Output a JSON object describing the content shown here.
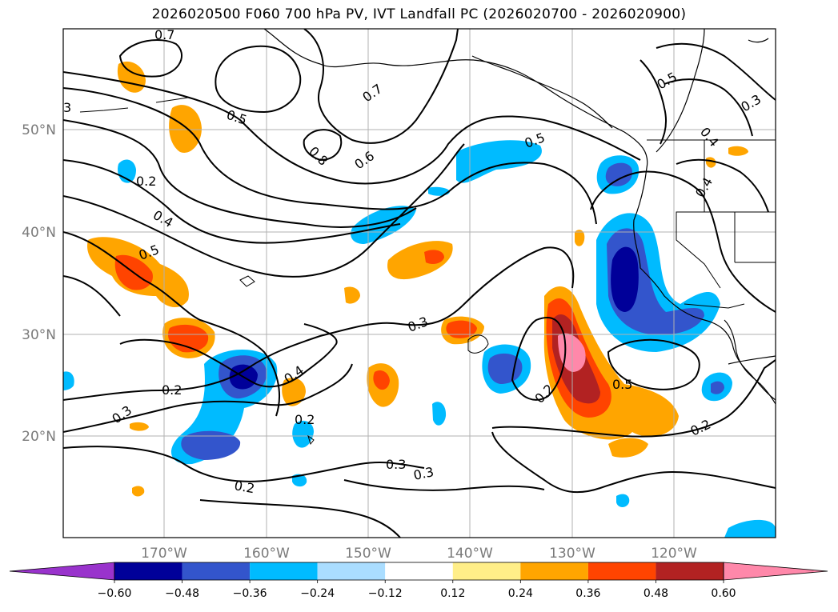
{
  "title": "2026020500 F060 700 hPa PV, IVT Landfall PC (2026020700 - 2026020900)",
  "lat_ticks": [
    "50°N",
    "40°N",
    "30°N",
    "20°N"
  ],
  "lon_ticks": [
    "170°W",
    "160°W",
    "150°W",
    "140°W",
    "130°W",
    "120°W"
  ],
  "colorbar": {
    "labels": [
      "−0.60",
      "−0.48",
      "−0.36",
      "−0.24",
      "−0.12",
      "0.12",
      "0.24",
      "0.36",
      "0.48",
      "0.60"
    ],
    "colors": [
      "#9933cc",
      "#000099",
      "#3355cc",
      "#00bbff",
      "#aaddff",
      "#ffffff",
      "#ffee88",
      "#ffa500",
      "#ff4400",
      "#b22222",
      "#ff88aa"
    ]
  },
  "contour_labels": [
    {
      "text": "0.7"
    },
    {
      "text": "0.5"
    },
    {
      "text": "0.3"
    },
    {
      "text": "0.8"
    },
    {
      "text": "0.7"
    },
    {
      "text": "0.6"
    },
    {
      "text": "0.5"
    },
    {
      "text": "0.5"
    },
    {
      "text": "0.3"
    },
    {
      "text": "0.4"
    },
    {
      "text": "0.2"
    },
    {
      "text": "0.4"
    },
    {
      "text": "0.5"
    },
    {
      "text": "0.4"
    },
    {
      "text": "0.3"
    },
    {
      "text": "0.4"
    },
    {
      "text": "0.2"
    },
    {
      "text": "0.3"
    },
    {
      "text": "0.2"
    },
    {
      "text": "0.2"
    },
    {
      "text": "0.3"
    },
    {
      "text": "0.3"
    },
    {
      "text": "0.5"
    },
    {
      "text": "0.2"
    },
    {
      "text": "0.2"
    },
    {
      "text": "3"
    }
  ]
}
